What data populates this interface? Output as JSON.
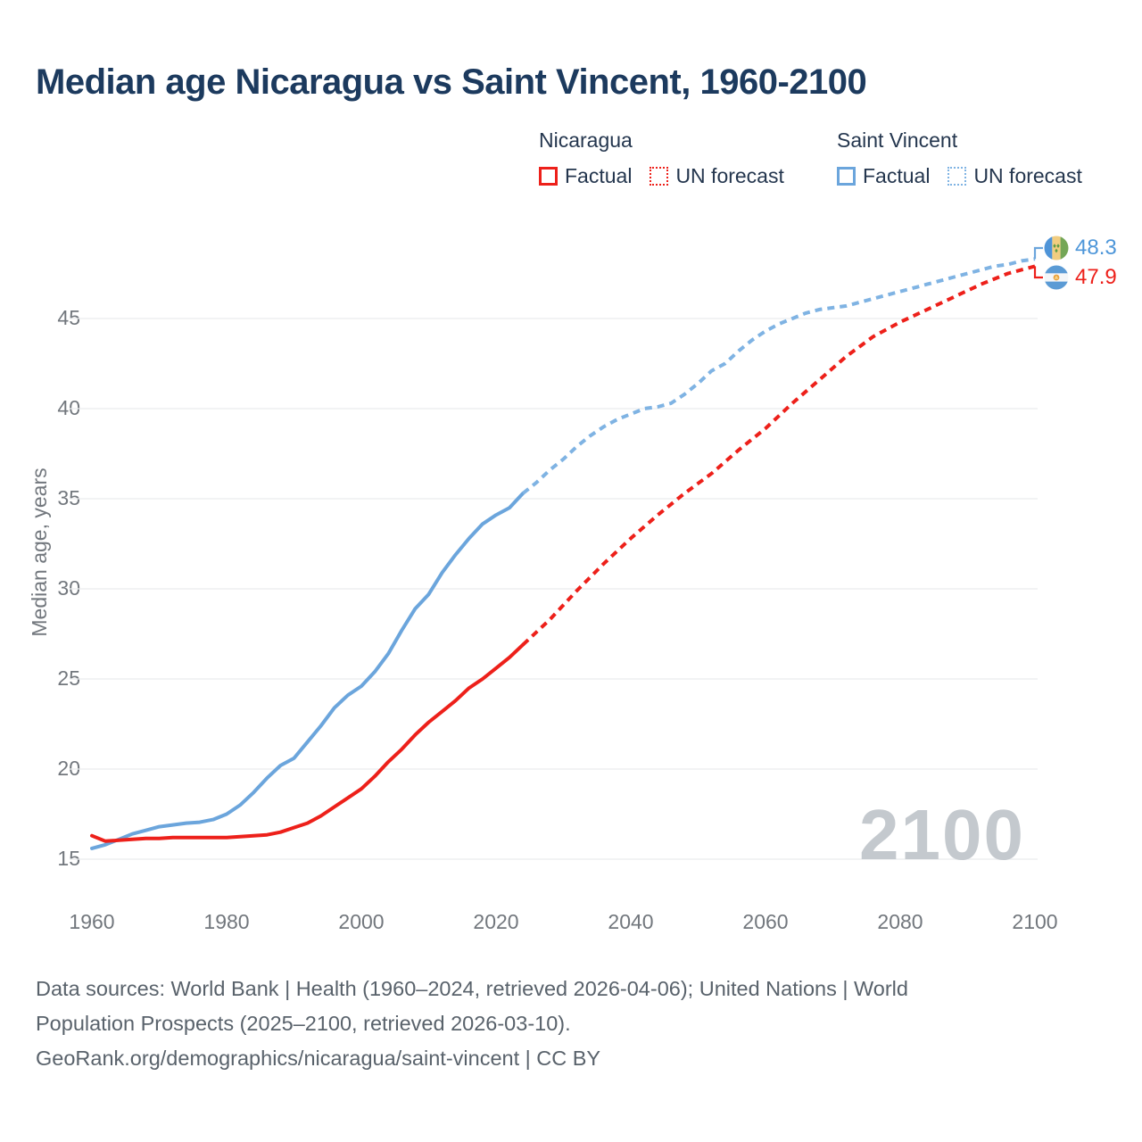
{
  "header": {
    "title": "Median age Nicaragua vs Saint Vincent, 1960-2100"
  },
  "legend": {
    "groups": [
      {
        "name": "Nicaragua",
        "items": [
          {
            "label": "Factual",
            "style": "solid",
            "color": "#ED201A"
          },
          {
            "label": "UN forecast",
            "style": "dotted",
            "color": "#ED201A"
          }
        ]
      },
      {
        "name": "Saint Vincent",
        "items": [
          {
            "label": "Factual",
            "style": "solid",
            "color": "#6BA5DC"
          },
          {
            "label": "UN forecast",
            "style": "dotted",
            "color": "#7FB3E3"
          }
        ]
      }
    ]
  },
  "end_labels": [
    {
      "series": "Saint Vincent",
      "value": "48.3",
      "color": "#4D96D9",
      "flag": "saint-vincent-flag"
    },
    {
      "series": "Nicaragua",
      "value": "47.9",
      "color": "#ED201A",
      "flag": "nicaragua-flag"
    }
  ],
  "watermark": "2100",
  "footer": {
    "lines": [
      "Data sources: World Bank | Health (1960–2024, retrieved 2026-04-06); United Nations | World",
      "Population Prospects (2025–2100, retrieved 2026-03-10).",
      "GeoRank.org/demographics/nicaragua/saint-vincent | CC BY"
    ]
  },
  "chart_data": {
    "type": "line",
    "title": "Median age Nicaragua vs Saint Vincent, 1960-2100",
    "xlabel": "",
    "ylabel": "Median age, years",
    "x_ticks": [
      1960,
      1980,
      2000,
      2020,
      2040,
      2060,
      2080,
      2100
    ],
    "y_ticks": [
      15,
      20,
      25,
      30,
      35,
      40,
      45
    ],
    "xlim": [
      1960,
      2100
    ],
    "ylim": [
      15,
      50
    ],
    "grid": "horizontal-only",
    "grid_color": "#EAECEE",
    "legend_position": "top-right",
    "series": [
      {
        "name": "Saint Vincent — Factual",
        "style": "solid",
        "color": "#6BA5DC",
        "points": [
          [
            1960,
            15.6
          ],
          [
            1962,
            15.8
          ],
          [
            1964,
            16.1
          ],
          [
            1966,
            16.4
          ],
          [
            1968,
            16.6
          ],
          [
            1970,
            16.8
          ],
          [
            1972,
            16.9
          ],
          [
            1974,
            17.0
          ],
          [
            1976,
            17.05
          ],
          [
            1978,
            17.2
          ],
          [
            1980,
            17.5
          ],
          [
            1982,
            18.0
          ],
          [
            1984,
            18.7
          ],
          [
            1986,
            19.5
          ],
          [
            1988,
            20.2
          ],
          [
            1990,
            20.6
          ],
          [
            1992,
            21.5
          ],
          [
            1994,
            22.4
          ],
          [
            1996,
            23.4
          ],
          [
            1998,
            24.1
          ],
          [
            2000,
            24.6
          ],
          [
            2002,
            25.4
          ],
          [
            2004,
            26.4
          ],
          [
            2006,
            27.7
          ],
          [
            2008,
            28.9
          ],
          [
            2010,
            29.7
          ],
          [
            2012,
            30.9
          ],
          [
            2014,
            31.9
          ],
          [
            2016,
            32.8
          ],
          [
            2018,
            33.6
          ],
          [
            2020,
            34.1
          ],
          [
            2022,
            34.5
          ],
          [
            2024,
            35.3
          ]
        ]
      },
      {
        "name": "Saint Vincent — UN forecast",
        "style": "dashed",
        "color": "#7FB3E3",
        "points": [
          [
            2024,
            35.3
          ],
          [
            2026,
            35.9
          ],
          [
            2028,
            36.6
          ],
          [
            2030,
            37.2
          ],
          [
            2032,
            37.9
          ],
          [
            2034,
            38.5
          ],
          [
            2036,
            39.0
          ],
          [
            2038,
            39.4
          ],
          [
            2040,
            39.7
          ],
          [
            2042,
            40.0
          ],
          [
            2044,
            40.1
          ],
          [
            2046,
            40.3
          ],
          [
            2048,
            40.8
          ],
          [
            2050,
            41.4
          ],
          [
            2052,
            42.1
          ],
          [
            2054,
            42.5
          ],
          [
            2056,
            43.2
          ],
          [
            2058,
            43.8
          ],
          [
            2060,
            44.3
          ],
          [
            2062,
            44.7
          ],
          [
            2064,
            45.0
          ],
          [
            2066,
            45.3
          ],
          [
            2068,
            45.5
          ],
          [
            2070,
            45.6
          ],
          [
            2072,
            45.7
          ],
          [
            2074,
            45.9
          ],
          [
            2076,
            46.1
          ],
          [
            2078,
            46.3
          ],
          [
            2080,
            46.5
          ],
          [
            2082,
            46.7
          ],
          [
            2084,
            46.9
          ],
          [
            2086,
            47.1
          ],
          [
            2088,
            47.3
          ],
          [
            2090,
            47.5
          ],
          [
            2092,
            47.7
          ],
          [
            2094,
            47.9
          ],
          [
            2096,
            48.0
          ],
          [
            2098,
            48.2
          ],
          [
            2100,
            48.3
          ]
        ]
      },
      {
        "name": "Nicaragua — Factual",
        "style": "solid",
        "color": "#ED201A",
        "points": [
          [
            1960,
            16.3
          ],
          [
            1962,
            16.0
          ],
          [
            1964,
            16.05
          ],
          [
            1966,
            16.1
          ],
          [
            1968,
            16.15
          ],
          [
            1970,
            16.15
          ],
          [
            1972,
            16.2
          ],
          [
            1974,
            16.2
          ],
          [
            1976,
            16.2
          ],
          [
            1978,
            16.2
          ],
          [
            1980,
            16.2
          ],
          [
            1982,
            16.25
          ],
          [
            1984,
            16.3
          ],
          [
            1986,
            16.35
          ],
          [
            1988,
            16.5
          ],
          [
            1990,
            16.75
          ],
          [
            1992,
            17.0
          ],
          [
            1994,
            17.4
          ],
          [
            1996,
            17.9
          ],
          [
            1998,
            18.4
          ],
          [
            2000,
            18.9
          ],
          [
            2002,
            19.6
          ],
          [
            2004,
            20.4
          ],
          [
            2006,
            21.1
          ],
          [
            2008,
            21.9
          ],
          [
            2010,
            22.6
          ],
          [
            2012,
            23.2
          ],
          [
            2014,
            23.8
          ],
          [
            2016,
            24.5
          ],
          [
            2018,
            25.0
          ],
          [
            2020,
            25.6
          ],
          [
            2022,
            26.2
          ],
          [
            2024,
            26.9
          ]
        ]
      },
      {
        "name": "Nicaragua — UN forecast",
        "style": "dashed",
        "color": "#ED201A",
        "points": [
          [
            2024,
            26.9
          ],
          [
            2028,
            28.3
          ],
          [
            2032,
            29.9
          ],
          [
            2036,
            31.4
          ],
          [
            2040,
            32.8
          ],
          [
            2044,
            34.1
          ],
          [
            2048,
            35.3
          ],
          [
            2052,
            36.4
          ],
          [
            2056,
            37.7
          ],
          [
            2060,
            38.9
          ],
          [
            2064,
            40.3
          ],
          [
            2068,
            41.6
          ],
          [
            2072,
            42.9
          ],
          [
            2076,
            44.0
          ],
          [
            2080,
            44.8
          ],
          [
            2084,
            45.5
          ],
          [
            2088,
            46.2
          ],
          [
            2092,
            46.9
          ],
          [
            2096,
            47.5
          ],
          [
            2100,
            47.9
          ]
        ]
      }
    ]
  }
}
